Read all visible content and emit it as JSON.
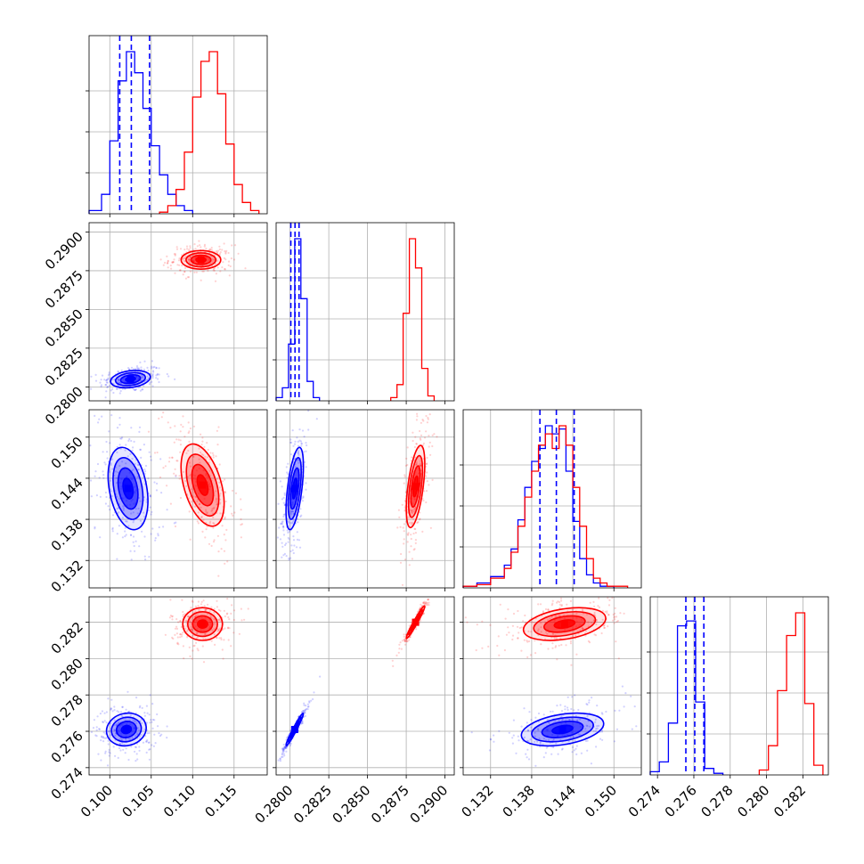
{
  "chart_data": {
    "type": "corner",
    "colors": {
      "series_a": "#0000ff",
      "series_b": "#ff0000"
    },
    "series": [
      {
        "color": "#0000ff",
        "means": [
          0.1025,
          0.2805,
          0.1428,
          0.2761
        ]
      },
      {
        "color": "#ff0000",
        "means": [
          0.111,
          0.2882,
          0.1432,
          0.2819
        ]
      }
    ],
    "params": [
      {
        "range": [
          0.0975,
          0.119
        ],
        "ticks": [
          "0.100",
          "0.105",
          "0.110",
          "0.115"
        ],
        "tick_values": [
          0.1,
          0.105,
          0.11,
          0.115
        ]
      },
      {
        "range": [
          0.2791,
          0.2906
        ],
        "ticks": [
          "0.2800",
          "0.2825",
          "0.2850",
          "0.2875",
          "0.2900"
        ],
        "tick_values": [
          0.28,
          0.2825,
          0.285,
          0.2875,
          0.29
        ]
      },
      {
        "range": [
          0.128,
          0.154
        ],
        "ticks": [
          "0.132",
          "0.138",
          "0.144",
          "0.150"
        ],
        "tick_values": [
          0.132,
          0.138,
          0.144,
          0.15
        ]
      },
      {
        "range": [
          0.2736,
          0.2834
        ],
        "ticks": [
          "0.274",
          "0.276",
          "0.278",
          "0.280",
          "0.282"
        ],
        "tick_values": [
          0.274,
          0.276,
          0.278,
          0.28,
          0.282
        ]
      }
    ],
    "histograms": [
      {
        "param": 0,
        "quantiles_series_a": [
          0.1012,
          0.1026,
          0.1048
        ],
        "blue": {
          "edges": [
            0.0975,
            0.099,
            0.1,
            0.101,
            0.102,
            0.103,
            0.104,
            0.105,
            0.106,
            0.107,
            0.108,
            0.109,
            0.11
          ],
          "counts": [
            0.02,
            0.12,
            0.45,
            0.82,
            1.0,
            0.87,
            0.65,
            0.42,
            0.24,
            0.12,
            0.05,
            0.02
          ]
        },
        "red": {
          "edges": [
            0.106,
            0.107,
            0.108,
            0.109,
            0.11,
            0.111,
            0.112,
            0.113,
            0.114,
            0.115,
            0.116,
            0.117,
            0.118
          ],
          "counts": [
            0.01,
            0.05,
            0.15,
            0.38,
            0.72,
            0.94,
            1.0,
            0.74,
            0.43,
            0.18,
            0.07,
            0.02
          ]
        }
      },
      {
        "param": 1,
        "quantiles_series_a": [
          0.28005,
          0.28032,
          0.28058
        ],
        "blue": {
          "edges": [
            0.2791,
            0.2795,
            0.2799,
            0.2803,
            0.2807,
            0.2811,
            0.2815,
            0.2819
          ],
          "counts": [
            0.02,
            0.08,
            0.35,
            1.0,
            0.63,
            0.12,
            0.02
          ]
        },
        "red": {
          "edges": [
            0.2865,
            0.2869,
            0.2873,
            0.2877,
            0.2881,
            0.2885,
            0.2889,
            0.2893
          ],
          "counts": [
            0.02,
            0.1,
            0.54,
            1.0,
            0.82,
            0.2,
            0.03
          ]
        }
      },
      {
        "param": 2,
        "quantiles_series_a": [
          0.1392,
          0.1416,
          0.1442
        ],
        "blue": {
          "edges": [
            0.128,
            0.13,
            0.132,
            0.134,
            0.135,
            0.136,
            0.137,
            0.138,
            0.139,
            0.14,
            0.141,
            0.142,
            0.143,
            0.144,
            0.145,
            0.146,
            0.147,
            0.148,
            0.149,
            0.15
          ],
          "counts": [
            0.01,
            0.03,
            0.07,
            0.14,
            0.24,
            0.42,
            0.62,
            0.78,
            0.86,
            1.0,
            0.95,
            0.98,
            0.72,
            0.41,
            0.18,
            0.08,
            0.03,
            0.01,
            0.01
          ]
        },
        "red": {
          "edges": [
            0.128,
            0.13,
            0.132,
            0.134,
            0.135,
            0.136,
            0.137,
            0.138,
            0.139,
            0.14,
            0.141,
            0.142,
            0.143,
            0.144,
            0.145,
            0.146,
            0.147,
            0.148,
            0.149,
            0.15,
            0.152
          ],
          "counts": [
            0.01,
            0.02,
            0.06,
            0.12,
            0.22,
            0.38,
            0.56,
            0.72,
            0.88,
            0.95,
            0.86,
            1.0,
            0.88,
            0.62,
            0.38,
            0.18,
            0.06,
            0.03,
            0.01,
            0.01
          ]
        }
      },
      {
        "param": 3,
        "quantiles_series_a": [
          0.27556,
          0.27605,
          0.27655
        ],
        "blue": {
          "edges": [
            0.2736,
            0.2741,
            0.2746,
            0.2751,
            0.2756,
            0.2761,
            0.2766,
            0.2771,
            0.2776
          ],
          "counts": [
            0.02,
            0.08,
            0.32,
            0.92,
            0.95,
            0.45,
            0.04,
            0.01
          ]
        },
        "red": {
          "edges": [
            0.2796,
            0.2801,
            0.2806,
            0.2811,
            0.2816,
            0.2821,
            0.2826,
            0.2831
          ],
          "counts": [
            0.03,
            0.18,
            0.52,
            0.86,
            1.0,
            0.44,
            0.06
          ]
        }
      }
    ],
    "scatter_2d": [
      {
        "x": 0,
        "y": 1,
        "blue_center": [
          0.1025,
          0.2805
        ],
        "blue_sd": [
          0.0012,
          0.00028
        ],
        "blue_rho": 0.25,
        "red_center": [
          0.111,
          0.2882
        ],
        "red_sd": [
          0.0012,
          0.0003
        ],
        "red_rho": 0.0
      },
      {
        "x": 0,
        "y": 2,
        "blue_center": [
          0.1022,
          0.1425
        ],
        "blue_sd": [
          0.0012,
          0.003
        ],
        "blue_rho": -0.3,
        "red_center": [
          0.1112,
          0.143
        ],
        "red_sd": [
          0.0013,
          0.003
        ],
        "red_rho": -0.45
      },
      {
        "x": 1,
        "y": 2,
        "blue_center": [
          0.2803,
          0.1425
        ],
        "blue_sd": [
          0.00028,
          0.003
        ],
        "blue_rho": 0.55,
        "red_center": [
          0.2881,
          0.1428
        ],
        "red_sd": [
          0.0003,
          0.003
        ],
        "red_rho": 0.55
      },
      {
        "x": 0,
        "y": 3,
        "blue_center": [
          0.102,
          0.2761
        ],
        "blue_sd": [
          0.0012,
          0.00045
        ],
        "blue_rho": 0.1,
        "red_center": [
          0.1112,
          0.2819
        ],
        "red_sd": [
          0.0012,
          0.00045
        ],
        "red_rho": 0.0
      },
      {
        "x": 1,
        "y": 3,
        "blue_center": [
          0.2803,
          0.2761
        ],
        "blue_sd": [
          0.00028,
          0.00045
        ],
        "blue_rho": 0.97,
        "red_center": [
          0.2881,
          0.282
        ],
        "red_sd": [
          0.0003,
          0.00045
        ],
        "red_rho": 0.97
      },
      {
        "x": 2,
        "y": 3,
        "blue_center": [
          0.1425,
          0.2761
        ],
        "blue_sd": [
          0.003,
          0.00045
        ],
        "blue_rho": 0.35,
        "red_center": [
          0.1428,
          0.2819
        ],
        "red_sd": [
          0.003,
          0.00045
        ],
        "red_rho": 0.35
      }
    ],
    "grid": true,
    "legend": "none",
    "title": "",
    "xlabel": "",
    "ylabel": ""
  }
}
